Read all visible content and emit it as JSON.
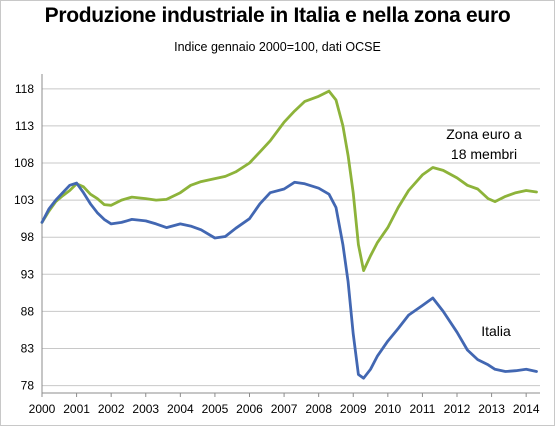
{
  "chart_data": {
    "type": "line",
    "title": "Produzione industriale in Italia e nella zona euro",
    "subtitle": "Indice gennaio 2000=100,  dati OCSE",
    "xlabel": "",
    "ylabel": "",
    "xlim": [
      2000.0,
      2014.4
    ],
    "ylim": [
      77,
      120
    ],
    "y_ticks": [
      78,
      83,
      88,
      93,
      98,
      103,
      108,
      113,
      118
    ],
    "x_ticks": [
      2000,
      2001,
      2002,
      2003,
      2004,
      2005,
      2006,
      2007,
      2008,
      2009,
      2010,
      2011,
      2012,
      2013,
      2014
    ],
    "grid": "horizontal",
    "legend": "none",
    "annotations": [
      {
        "lines": [
          "Zona euro a",
          "18 membri"
        ],
        "series": "euro"
      },
      {
        "lines": [
          "Italia"
        ],
        "series": "italia"
      }
    ],
    "series": [
      {
        "id": "euro",
        "color": "#8db33a",
        "points": [
          [
            2000.0,
            100.0
          ],
          [
            2000.2,
            101.5
          ],
          [
            2000.4,
            102.8
          ],
          [
            2000.6,
            103.6
          ],
          [
            2000.8,
            104.3
          ],
          [
            2001.0,
            105.2
          ],
          [
            2001.2,
            104.8
          ],
          [
            2001.4,
            103.8
          ],
          [
            2001.6,
            103.2
          ],
          [
            2001.8,
            102.4
          ],
          [
            2002.0,
            102.3
          ],
          [
            2002.3,
            103.0
          ],
          [
            2002.6,
            103.4
          ],
          [
            2003.0,
            103.2
          ],
          [
            2003.3,
            103.0
          ],
          [
            2003.6,
            103.1
          ],
          [
            2004.0,
            104.0
          ],
          [
            2004.3,
            105.0
          ],
          [
            2004.6,
            105.5
          ],
          [
            2005.0,
            105.9
          ],
          [
            2005.3,
            106.2
          ],
          [
            2005.6,
            106.8
          ],
          [
            2006.0,
            108.0
          ],
          [
            2006.3,
            109.5
          ],
          [
            2006.6,
            111.0
          ],
          [
            2007.0,
            113.5
          ],
          [
            2007.3,
            115.0
          ],
          [
            2007.6,
            116.3
          ],
          [
            2008.0,
            117.0
          ],
          [
            2008.3,
            117.7
          ],
          [
            2008.5,
            116.5
          ],
          [
            2008.7,
            113.0
          ],
          [
            2008.85,
            109.0
          ],
          [
            2009.0,
            104.0
          ],
          [
            2009.15,
            97.0
          ],
          [
            2009.3,
            93.5
          ],
          [
            2009.5,
            95.5
          ],
          [
            2009.7,
            97.3
          ],
          [
            2010.0,
            99.3
          ],
          [
            2010.3,
            102.0
          ],
          [
            2010.6,
            104.3
          ],
          [
            2011.0,
            106.4
          ],
          [
            2011.3,
            107.4
          ],
          [
            2011.6,
            107.0
          ],
          [
            2012.0,
            106.0
          ],
          [
            2012.3,
            105.0
          ],
          [
            2012.6,
            104.5
          ],
          [
            2012.9,
            103.2
          ],
          [
            2013.1,
            102.8
          ],
          [
            2013.4,
            103.5
          ],
          [
            2013.7,
            104.0
          ],
          [
            2014.0,
            104.3
          ],
          [
            2014.3,
            104.1
          ]
        ]
      },
      {
        "id": "italia",
        "color": "#4267b2",
        "points": [
          [
            2000.0,
            100.0
          ],
          [
            2000.2,
            101.8
          ],
          [
            2000.4,
            103.0
          ],
          [
            2000.6,
            104.0
          ],
          [
            2000.8,
            105.0
          ],
          [
            2001.0,
            105.3
          ],
          [
            2001.2,
            104.0
          ],
          [
            2001.4,
            102.5
          ],
          [
            2001.6,
            101.3
          ],
          [
            2001.8,
            100.4
          ],
          [
            2002.0,
            99.8
          ],
          [
            2002.3,
            100.0
          ],
          [
            2002.6,
            100.4
          ],
          [
            2003.0,
            100.2
          ],
          [
            2003.3,
            99.8
          ],
          [
            2003.6,
            99.3
          ],
          [
            2004.0,
            99.8
          ],
          [
            2004.3,
            99.5
          ],
          [
            2004.6,
            99.0
          ],
          [
            2005.0,
            97.9
          ],
          [
            2005.3,
            98.1
          ],
          [
            2005.6,
            99.2
          ],
          [
            2006.0,
            100.5
          ],
          [
            2006.3,
            102.5
          ],
          [
            2006.6,
            104.0
          ],
          [
            2007.0,
            104.5
          ],
          [
            2007.3,
            105.4
          ],
          [
            2007.6,
            105.2
          ],
          [
            2008.0,
            104.6
          ],
          [
            2008.3,
            103.8
          ],
          [
            2008.5,
            102.0
          ],
          [
            2008.7,
            97.0
          ],
          [
            2008.85,
            92.0
          ],
          [
            2009.0,
            85.0
          ],
          [
            2009.15,
            79.5
          ],
          [
            2009.3,
            79.0
          ],
          [
            2009.5,
            80.2
          ],
          [
            2009.7,
            82.0
          ],
          [
            2010.0,
            84.0
          ],
          [
            2010.3,
            85.7
          ],
          [
            2010.6,
            87.5
          ],
          [
            2011.0,
            88.8
          ],
          [
            2011.3,
            89.8
          ],
          [
            2011.6,
            88.0
          ],
          [
            2012.0,
            85.2
          ],
          [
            2012.3,
            82.8
          ],
          [
            2012.6,
            81.5
          ],
          [
            2012.9,
            80.8
          ],
          [
            2013.1,
            80.2
          ],
          [
            2013.4,
            79.9
          ],
          [
            2013.7,
            80.0
          ],
          [
            2014.0,
            80.2
          ],
          [
            2014.3,
            79.9
          ]
        ]
      }
    ]
  }
}
